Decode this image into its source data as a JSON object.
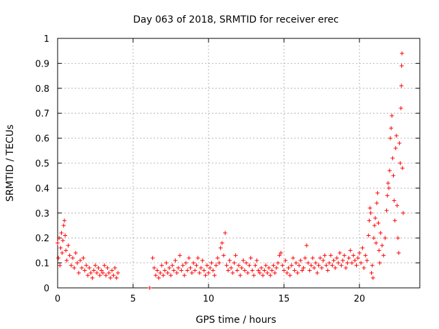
{
  "chart_data": {
    "type": "scatter",
    "title": "Day 063 of 2018, SRMTID for receiver erec",
    "xlabel": "GPS time / hours",
    "ylabel": "SRMTID / TECUs",
    "xlim": [
      0,
      24
    ],
    "ylim": [
      0,
      1
    ],
    "x_ticks": [
      0,
      5,
      10,
      15,
      20
    ],
    "y_ticks": [
      0,
      0.1,
      0.2,
      0.3,
      0.4,
      0.5,
      0.6,
      0.7,
      0.8,
      0.9,
      1
    ],
    "x_tick_labels": [
      "0",
      "5",
      "10",
      "15",
      "20"
    ],
    "y_tick_labels": [
      "0",
      "0.1",
      "0.2",
      "0.3",
      "0.4",
      "0.5",
      "0.6",
      "0.7",
      "0.8",
      "0.9",
      "1"
    ],
    "grid": true,
    "marker": "+",
    "color": "#ff0000",
    "series": [
      {
        "name": "SRMTID",
        "points": [
          [
            0.0,
            0.18
          ],
          [
            0.05,
            0.12
          ],
          [
            0.1,
            0.2
          ],
          [
            0.15,
            0.09
          ],
          [
            0.2,
            0.16
          ],
          [
            0.25,
            0.22
          ],
          [
            0.3,
            0.14
          ],
          [
            0.35,
            0.19
          ],
          [
            0.4,
            0.25
          ],
          [
            0.45,
            0.27
          ],
          [
            0.5,
            0.21
          ],
          [
            0.55,
            0.15
          ],
          [
            0.6,
            0.11
          ],
          [
            0.7,
            0.17
          ],
          [
            0.8,
            0.13
          ],
          [
            0.9,
            0.09
          ],
          [
            1.0,
            0.12
          ],
          [
            1.1,
            0.08
          ],
          [
            1.2,
            0.14
          ],
          [
            1.3,
            0.1
          ],
          [
            1.4,
            0.06
          ],
          [
            1.5,
            0.11
          ],
          [
            1.6,
            0.08
          ],
          [
            1.7,
            0.12
          ],
          [
            1.8,
            0.07
          ],
          [
            1.9,
            0.09
          ],
          [
            2.0,
            0.05
          ],
          [
            2.1,
            0.08
          ],
          [
            2.2,
            0.06
          ],
          [
            2.3,
            0.04
          ],
          [
            2.4,
            0.07
          ],
          [
            2.5,
            0.09
          ],
          [
            2.6,
            0.06
          ],
          [
            2.7,
            0.08
          ],
          [
            2.8,
            0.05
          ],
          [
            2.9,
            0.07
          ],
          [
            3.0,
            0.06
          ],
          [
            3.1,
            0.09
          ],
          [
            3.2,
            0.05
          ],
          [
            3.3,
            0.08
          ],
          [
            3.4,
            0.06
          ],
          [
            3.5,
            0.04
          ],
          [
            3.6,
            0.07
          ],
          [
            3.7,
            0.05
          ],
          [
            3.8,
            0.08
          ],
          [
            3.9,
            0.04
          ],
          [
            4.0,
            0.06
          ],
          [
            6.1,
            0.0
          ],
          [
            6.3,
            0.12
          ],
          [
            6.4,
            0.08
          ],
          [
            6.5,
            0.05
          ],
          [
            6.6,
            0.07
          ],
          [
            6.7,
            0.04
          ],
          [
            6.8,
            0.06
          ],
          [
            6.9,
            0.09
          ],
          [
            7.0,
            0.05
          ],
          [
            7.1,
            0.07
          ],
          [
            7.2,
            0.1
          ],
          [
            7.3,
            0.06
          ],
          [
            7.4,
            0.08
          ],
          [
            7.5,
            0.05
          ],
          [
            7.6,
            0.09
          ],
          [
            7.7,
            0.07
          ],
          [
            7.8,
            0.11
          ],
          [
            7.9,
            0.06
          ],
          [
            8.0,
            0.08
          ],
          [
            8.1,
            0.13
          ],
          [
            8.2,
            0.07
          ],
          [
            8.3,
            0.09
          ],
          [
            8.4,
            0.05
          ],
          [
            8.5,
            0.1
          ],
          [
            8.6,
            0.07
          ],
          [
            8.7,
            0.12
          ],
          [
            8.8,
            0.08
          ],
          [
            8.9,
            0.06
          ],
          [
            9.0,
            0.1
          ],
          [
            9.1,
            0.07
          ],
          [
            9.2,
            0.09
          ],
          [
            9.3,
            0.12
          ],
          [
            9.4,
            0.06
          ],
          [
            9.5,
            0.08
          ],
          [
            9.6,
            0.11
          ],
          [
            9.7,
            0.07
          ],
          [
            9.8,
            0.05
          ],
          [
            9.9,
            0.09
          ],
          [
            10.0,
            0.06
          ],
          [
            10.1,
            0.08
          ],
          [
            10.2,
            0.1
          ],
          [
            10.3,
            0.07
          ],
          [
            10.4,
            0.05
          ],
          [
            10.5,
            0.09
          ],
          [
            10.6,
            0.12
          ],
          [
            10.7,
            0.1
          ],
          [
            10.8,
            0.16
          ],
          [
            10.9,
            0.18
          ],
          [
            11.0,
            0.13
          ],
          [
            11.1,
            0.22
          ],
          [
            11.2,
            0.09
          ],
          [
            11.3,
            0.07
          ],
          [
            11.4,
            0.11
          ],
          [
            11.5,
            0.08
          ],
          [
            11.6,
            0.06
          ],
          [
            11.7,
            0.1
          ],
          [
            11.8,
            0.13
          ],
          [
            11.9,
            0.07
          ],
          [
            12.0,
            0.09
          ],
          [
            12.1,
            0.05
          ],
          [
            12.2,
            0.08
          ],
          [
            12.3,
            0.11
          ],
          [
            12.4,
            0.07
          ],
          [
            12.5,
            0.1
          ],
          [
            12.6,
            0.06
          ],
          [
            12.7,
            0.09
          ],
          [
            12.8,
            0.12
          ],
          [
            12.9,
            0.07
          ],
          [
            13.0,
            0.05
          ],
          [
            13.1,
            0.09
          ],
          [
            13.2,
            0.11
          ],
          [
            13.3,
            0.07
          ],
          [
            13.4,
            0.06
          ],
          [
            13.5,
            0.08
          ],
          [
            13.6,
            0.05
          ],
          [
            13.7,
            0.07
          ],
          [
            13.8,
            0.09
          ],
          [
            13.9,
            0.06
          ],
          [
            14.0,
            0.08
          ],
          [
            14.1,
            0.05
          ],
          [
            14.2,
            0.07
          ],
          [
            14.3,
            0.09
          ],
          [
            14.4,
            0.06
          ],
          [
            14.5,
            0.08
          ],
          [
            14.6,
            0.1
          ],
          [
            14.7,
            0.13
          ],
          [
            14.8,
            0.14
          ],
          [
            14.9,
            0.09
          ],
          [
            15.0,
            0.07
          ],
          [
            15.1,
            0.11
          ],
          [
            15.2,
            0.06
          ],
          [
            15.3,
            0.08
          ],
          [
            15.4,
            0.05
          ],
          [
            15.5,
            0.09
          ],
          [
            15.6,
            0.12
          ],
          [
            15.7,
            0.07
          ],
          [
            15.8,
            0.1
          ],
          [
            15.9,
            0.06
          ],
          [
            16.0,
            0.09
          ],
          [
            16.1,
            0.11
          ],
          [
            16.2,
            0.07
          ],
          [
            16.3,
            0.08
          ],
          [
            16.4,
            0.12
          ],
          [
            16.5,
            0.17
          ],
          [
            16.6,
            0.1
          ],
          [
            16.7,
            0.07
          ],
          [
            16.8,
            0.09
          ],
          [
            16.9,
            0.12
          ],
          [
            17.0,
            0.08
          ],
          [
            17.1,
            0.1
          ],
          [
            17.2,
            0.06
          ],
          [
            17.3,
            0.09
          ],
          [
            17.4,
            0.12
          ],
          [
            17.5,
            0.08
          ],
          [
            17.6,
            0.11
          ],
          [
            17.7,
            0.13
          ],
          [
            17.8,
            0.09
          ],
          [
            17.9,
            0.07
          ],
          [
            18.0,
            0.1
          ],
          [
            18.1,
            0.13
          ],
          [
            18.2,
            0.09
          ],
          [
            18.3,
            0.11
          ],
          [
            18.4,
            0.08
          ],
          [
            18.5,
            0.12
          ],
          [
            18.6,
            0.1
          ],
          [
            18.7,
            0.14
          ],
          [
            18.8,
            0.09
          ],
          [
            18.9,
            0.11
          ],
          [
            19.0,
            0.13
          ],
          [
            19.1,
            0.08
          ],
          [
            19.2,
            0.1
          ],
          [
            19.3,
            0.12
          ],
          [
            19.4,
            0.15
          ],
          [
            19.5,
            0.1
          ],
          [
            19.6,
            0.13
          ],
          [
            19.7,
            0.11
          ],
          [
            19.8,
            0.09
          ],
          [
            19.9,
            0.12
          ],
          [
            20.0,
            0.14
          ],
          [
            20.1,
            0.1
          ],
          [
            20.2,
            0.16
          ],
          [
            20.3,
            0.08
          ],
          [
            20.4,
            0.13
          ],
          [
            20.5,
            0.11
          ],
          [
            20.6,
            0.21
          ],
          [
            20.65,
            0.27
          ],
          [
            20.7,
            0.32
          ],
          [
            20.75,
            0.3
          ],
          [
            20.8,
            0.06
          ],
          [
            20.85,
            0.09
          ],
          [
            20.9,
            0.04
          ],
          [
            20.95,
            0.2
          ],
          [
            21.0,
            0.25
          ],
          [
            21.05,
            0.28
          ],
          [
            21.1,
            0.18
          ],
          [
            21.15,
            0.34
          ],
          [
            21.2,
            0.38
          ],
          [
            21.25,
            0.26
          ],
          [
            21.3,
            0.15
          ],
          [
            21.35,
            0.1
          ],
          [
            21.4,
            0.22
          ],
          [
            21.5,
            0.17
          ],
          [
            21.6,
            0.13
          ],
          [
            21.7,
            0.2
          ],
          [
            21.8,
            0.31
          ],
          [
            21.85,
            0.37
          ],
          [
            21.9,
            0.42
          ],
          [
            21.95,
            0.4
          ],
          [
            22.0,
            0.47
          ],
          [
            22.05,
            0.6
          ],
          [
            22.1,
            0.64
          ],
          [
            22.15,
            0.69
          ],
          [
            22.2,
            0.52
          ],
          [
            22.25,
            0.45
          ],
          [
            22.3,
            0.35
          ],
          [
            22.35,
            0.27
          ],
          [
            22.4,
            0.56
          ],
          [
            22.45,
            0.61
          ],
          [
            22.5,
            0.33
          ],
          [
            22.55,
            0.2
          ],
          [
            22.6,
            0.14
          ],
          [
            22.65,
            0.58
          ],
          [
            22.7,
            0.5
          ],
          [
            22.75,
            0.72
          ],
          [
            22.78,
            0.81
          ],
          [
            22.8,
            0.89
          ],
          [
            22.82,
            0.94
          ],
          [
            22.85,
            0.48
          ],
          [
            22.9,
            0.3
          ]
        ]
      }
    ]
  }
}
